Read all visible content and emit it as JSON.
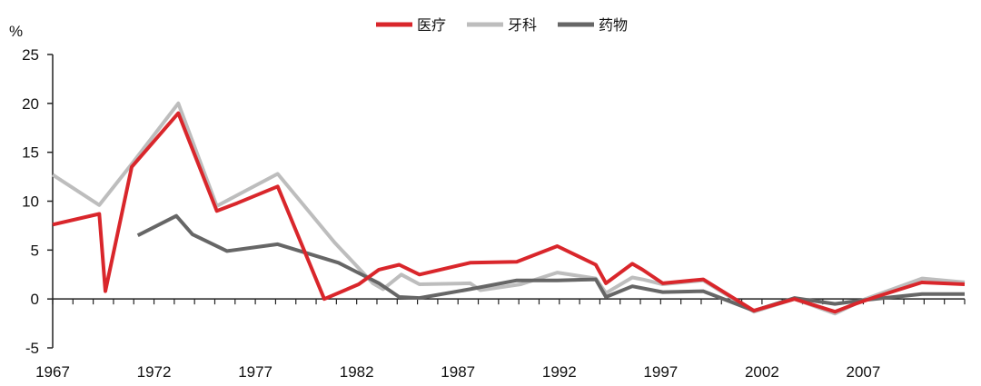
{
  "chart_data": {
    "type": "line",
    "ylabel": "%",
    "ylim": [
      -5,
      25
    ],
    "yticks": [
      "25",
      "20",
      "15",
      "10",
      "5",
      "0",
      "-5"
    ],
    "ytick_values": [
      25,
      20,
      15,
      10,
      5,
      0,
      -5
    ],
    "xlim": [
      1967,
      2012
    ],
    "xticks": [
      "1967",
      "1972",
      "1977",
      "1982",
      "1987",
      "1992",
      "1997",
      "2002",
      "2007"
    ],
    "xtick_values": [
      1967,
      1972,
      1977,
      1982,
      1987,
      1992,
      1997,
      2002,
      2007
    ],
    "legend": "top-center",
    "grid": false,
    "series": [
      {
        "name": "医疗",
        "color": "#d9262b",
        "points": [
          [
            1967,
            7.6
          ],
          [
            1969.3,
            8.7
          ],
          [
            1969.6,
            0.8
          ],
          [
            1970.9,
            13.5
          ],
          [
            1973.2,
            19.0
          ],
          [
            1975.1,
            9.0
          ],
          [
            1976.1,
            9.8
          ],
          [
            1978.1,
            11.5
          ],
          [
            1980.4,
            0.0
          ],
          [
            1982.1,
            1.5
          ],
          [
            1983.1,
            3.0
          ],
          [
            1984.1,
            3.5
          ],
          [
            1985.1,
            2.5
          ],
          [
            1987.6,
            3.7
          ],
          [
            1989.9,
            3.8
          ],
          [
            1991.9,
            5.4
          ],
          [
            1993.8,
            3.5
          ],
          [
            1994.3,
            1.6
          ],
          [
            1995.6,
            3.6
          ],
          [
            1996.1,
            3.0
          ],
          [
            1997.1,
            1.6
          ],
          [
            1999.1,
            2.0
          ],
          [
            2001.6,
            -1.2
          ],
          [
            2003.6,
            0.0
          ],
          [
            2005.6,
            -1.3
          ],
          [
            2006.6,
            -0.5
          ],
          [
            2007.6,
            0.2
          ],
          [
            2009.9,
            1.7
          ],
          [
            2012,
            1.5
          ]
        ]
      },
      {
        "name": "牙科",
        "color": "#bdbdbd",
        "points": [
          [
            1967,
            12.7
          ],
          [
            1969.3,
            9.6
          ],
          [
            1970.9,
            13.8
          ],
          [
            1973.2,
            20.0
          ],
          [
            1975.1,
            9.5
          ],
          [
            1976.1,
            10.6
          ],
          [
            1978.1,
            12.8
          ],
          [
            1980.9,
            5.8
          ],
          [
            1982.8,
            1.6
          ],
          [
            1983.3,
            1.0
          ],
          [
            1984.2,
            2.5
          ],
          [
            1985.1,
            1.5
          ],
          [
            1987.6,
            1.6
          ],
          [
            1988.1,
            0.9
          ],
          [
            1990.1,
            1.5
          ],
          [
            1991.9,
            2.7
          ],
          [
            1993.8,
            2.1
          ],
          [
            1994.3,
            0.6
          ],
          [
            1995.6,
            2.2
          ],
          [
            1996.1,
            2.0
          ],
          [
            1997.1,
            1.5
          ],
          [
            1999.1,
            1.9
          ],
          [
            2001.6,
            -1.3
          ],
          [
            2003.6,
            0.0
          ],
          [
            2005.6,
            -1.5
          ],
          [
            2007.1,
            0.0
          ],
          [
            2009.9,
            2.1
          ],
          [
            2012,
            1.7
          ]
        ]
      },
      {
        "name": "药物",
        "color": "#666666",
        "points": [
          [
            1971.2,
            6.5
          ],
          [
            1973.1,
            8.5
          ],
          [
            1973.9,
            6.6
          ],
          [
            1975.6,
            4.9
          ],
          [
            1978.1,
            5.6
          ],
          [
            1981.1,
            3.7
          ],
          [
            1983.1,
            1.6
          ],
          [
            1984.1,
            0.2
          ],
          [
            1985.1,
            0.1
          ],
          [
            1987.6,
            1.0
          ],
          [
            1989.9,
            1.9
          ],
          [
            1991.9,
            1.9
          ],
          [
            1993.8,
            2.0
          ],
          [
            1994.3,
            0.2
          ],
          [
            1995.6,
            1.3
          ],
          [
            1997.1,
            0.7
          ],
          [
            1999.1,
            0.8
          ],
          [
            2001.6,
            -1.2
          ],
          [
            2003.6,
            0.1
          ],
          [
            2005.6,
            -0.5
          ],
          [
            2007.1,
            -0.1
          ],
          [
            2009.9,
            0.5
          ],
          [
            2012,
            0.5
          ]
        ]
      }
    ]
  }
}
